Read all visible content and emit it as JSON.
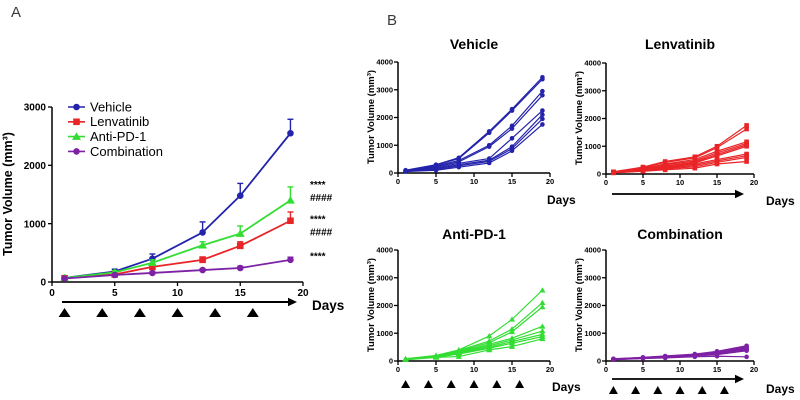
{
  "figure": {
    "panel_a_label": "A",
    "panel_b_label": "B"
  },
  "chart_data": [
    {
      "id": "panel-a-mean",
      "type": "line",
      "ylabel": "Tumor Volume (mm³)",
      "days_label": "Days",
      "x": [
        1,
        5,
        8,
        12,
        15,
        19
      ],
      "xlim": [
        0,
        20
      ],
      "ylim": [
        0,
        3000
      ],
      "xticks": [
        0,
        5,
        10,
        15,
        20
      ],
      "yticks": [
        0,
        1000,
        2000,
        3000
      ],
      "legend": true,
      "series": [
        {
          "name": "Vehicle",
          "color": "#2323AC",
          "marker": "circle",
          "values": [
            70,
            180,
            400,
            850,
            1480,
            2550
          ],
          "errors": [
            25,
            40,
            80,
            180,
            210,
            240
          ]
        },
        {
          "name": "Lenvatinib",
          "color": "#E92427",
          "marker": "square",
          "values": [
            65,
            130,
            260,
            380,
            620,
            1050
          ],
          "errors": [
            10,
            20,
            40,
            50,
            70,
            150
          ]
        },
        {
          "name": "Anti-PD-1",
          "color": "#33DD33",
          "marker": "triangle",
          "values": [
            68,
            165,
            330,
            630,
            830,
            1400
          ],
          "errors": [
            15,
            30,
            50,
            60,
            130,
            230
          ]
        },
        {
          "name": "Combination",
          "color": "#7D21A5",
          "marker": "circle",
          "values": [
            60,
            120,
            155,
            205,
            240,
            380
          ],
          "errors": [
            10,
            15,
            20,
            25,
            30,
            45
          ]
        }
      ],
      "annotations": [
        {
          "lines": [
            "****",
            "####"
          ],
          "at": 1580
        },
        {
          "lines": [
            "****",
            "####"
          ],
          "at": 990
        },
        {
          "lines": [
            "****"
          ],
          "at": 450
        }
      ],
      "dose_arrow": true,
      "dose_triangle_days": [
        1,
        4,
        7,
        10,
        13,
        16
      ]
    },
    {
      "id": "vehicle-individuals",
      "type": "line",
      "title": "Vehicle",
      "ylabel": "Tumor Volume (mm³)",
      "days_label": "Days",
      "color": "#2323AC",
      "marker": "circle",
      "x": [
        1,
        5,
        8,
        12,
        15,
        19
      ],
      "xlim": [
        0,
        20
      ],
      "ylim": [
        0,
        4000
      ],
      "xticks": [
        0,
        5,
        10,
        15,
        20
      ],
      "yticks": [
        0,
        1000,
        2000,
        3000,
        4000
      ],
      "lines": [
        [
          100,
          300,
          550,
          1500,
          2300,
          3450
        ],
        [
          90,
          280,
          520,
          1450,
          2250,
          3380
        ],
        [
          80,
          250,
          450,
          1000,
          1700,
          2950
        ],
        [
          75,
          220,
          400,
          950,
          1600,
          2800
        ],
        [
          70,
          180,
          350,
          520,
          1250,
          2250
        ],
        [
          65,
          150,
          300,
          460,
          950,
          2100
        ],
        [
          60,
          120,
          260,
          420,
          880,
          1950
        ],
        [
          55,
          100,
          210,
          360,
          800,
          1750
        ]
      ]
    },
    {
      "id": "lenvatinib-individuals",
      "type": "line",
      "title": "Lenvatinib",
      "ylabel": "Tumor Volume (mm³)",
      "days_label": "Days",
      "color": "#E92427",
      "marker": "square",
      "x": [
        1,
        5,
        8,
        12,
        15,
        19
      ],
      "xlim": [
        0,
        20
      ],
      "ylim": [
        0,
        4000
      ],
      "xticks": [
        0,
        5,
        10,
        15,
        20
      ],
      "yticks": [
        0,
        1000,
        2000,
        3000,
        4000
      ],
      "dose_arrow": true,
      "lines": [
        [
          80,
          250,
          450,
          620,
          1000,
          1750
        ],
        [
          75,
          230,
          420,
          580,
          950,
          1620
        ],
        [
          70,
          200,
          360,
          520,
          820,
          1160
        ],
        [
          65,
          185,
          330,
          470,
          760,
          1100
        ],
        [
          60,
          165,
          290,
          430,
          700,
          1050
        ],
        [
          55,
          150,
          260,
          400,
          650,
          1000
        ],
        [
          52,
          140,
          230,
          360,
          520,
          720
        ],
        [
          50,
          130,
          210,
          310,
          470,
          660
        ],
        [
          45,
          120,
          185,
          260,
          420,
          600
        ],
        [
          40,
          100,
          150,
          210,
          360,
          450
        ]
      ]
    },
    {
      "id": "anti-pd-1-individuals",
      "type": "line",
      "title": "Anti-PD-1",
      "ylabel": "Tumor Volume (mm³)",
      "days_label": "Days",
      "color": "#33DD33",
      "marker": "triangle",
      "x": [
        1,
        5,
        8,
        12,
        15,
        19
      ],
      "xlim": [
        0,
        20
      ],
      "ylim": [
        0,
        4000
      ],
      "xticks": [
        0,
        5,
        10,
        15,
        20
      ],
      "yticks": [
        0,
        1000,
        2000,
        3000,
        4000
      ],
      "dose_triangle_days": [
        1,
        4,
        7,
        10,
        13,
        16
      ],
      "lines": [
        [
          80,
          200,
          400,
          900,
          1500,
          2550
        ],
        [
          75,
          190,
          380,
          720,
          1150,
          2100
        ],
        [
          70,
          180,
          350,
          660,
          1050,
          1950
        ],
        [
          65,
          170,
          320,
          600,
          820,
          1250
        ],
        [
          60,
          160,
          300,
          550,
          760,
          1080
        ],
        [
          55,
          150,
          280,
          500,
          700,
          960
        ],
        [
          50,
          140,
          250,
          460,
          640,
          880
        ],
        [
          45,
          130,
          160,
          400,
          520,
          800
        ]
      ]
    },
    {
      "id": "combination-individuals",
      "type": "line",
      "title": "Combination",
      "ylabel": "Tumor Volume (mm³)",
      "days_label": "Days",
      "color": "#7D21A5",
      "marker": "circle",
      "x": [
        1,
        5,
        8,
        12,
        15,
        19
      ],
      "xlim": [
        0,
        20
      ],
      "ylim": [
        0,
        4000
      ],
      "xticks": [
        0,
        5,
        10,
        15,
        20
      ],
      "yticks": [
        0,
        1000,
        2000,
        3000,
        4000
      ],
      "dose_arrow": true,
      "dose_triangle_days": [
        1,
        4,
        7,
        10,
        13,
        16
      ],
      "lines": [
        [
          80,
          130,
          180,
          250,
          350,
          550
        ],
        [
          75,
          125,
          170,
          240,
          330,
          510
        ],
        [
          70,
          120,
          160,
          230,
          310,
          480
        ],
        [
          65,
          115,
          150,
          220,
          290,
          450
        ],
        [
          60,
          110,
          140,
          210,
          270,
          420
        ],
        [
          55,
          105,
          130,
          195,
          250,
          400
        ],
        [
          50,
          100,
          120,
          180,
          230,
          370
        ],
        [
          45,
          90,
          110,
          150,
          170,
          150
        ]
      ]
    }
  ]
}
